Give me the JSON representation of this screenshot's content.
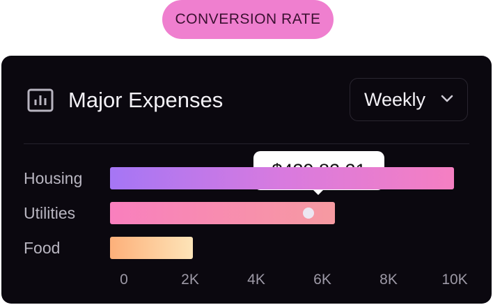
{
  "badge": {
    "label": "CONVERSION RATE"
  },
  "card": {
    "title": "Major Expenses",
    "title_icon": "bar-chart-icon",
    "period_select": {
      "selected": "Weekly",
      "icon": "chevron-down-icon"
    }
  },
  "tooltip": {
    "value": "$439,82.21"
  },
  "colors": {
    "badge_bg": "#ef7fcf",
    "card_bg": "#0b080f",
    "housing_gradient": [
      "#a576f5",
      "#f57fc2"
    ],
    "utilities_gradient": [
      "#f97fbe",
      "#f69aa1"
    ],
    "food_gradient": [
      "#fdb07a",
      "#fde4b8"
    ]
  },
  "chart_data": {
    "type": "bar",
    "orientation": "horizontal",
    "categories": [
      "Housing",
      "Utilities",
      "Food"
    ],
    "values": [
      10400,
      6800,
      2500
    ],
    "highlight": {
      "category": "Utilities",
      "value": 6000
    },
    "xlim": [
      0,
      10400
    ],
    "xticks": [
      0,
      2000,
      4000,
      6000,
      8000,
      10000
    ],
    "xtick_labels": [
      "0",
      "2K",
      "4K",
      "6K",
      "8K",
      "10K"
    ],
    "grid": false
  }
}
